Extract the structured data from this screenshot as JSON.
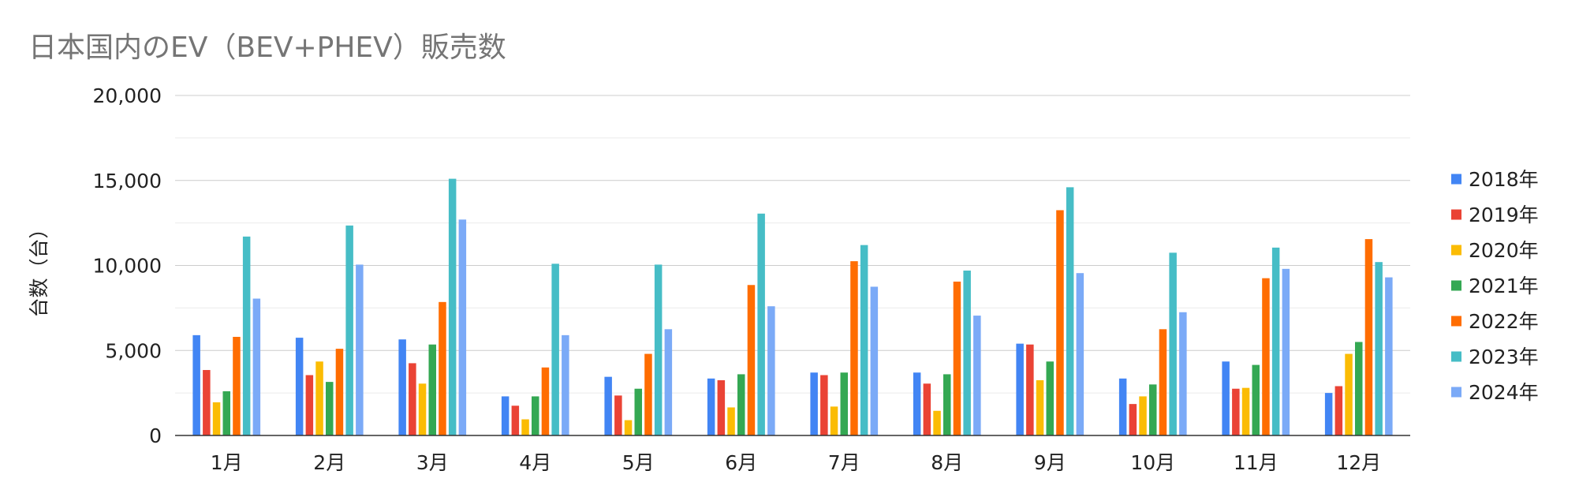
{
  "chart_data": {
    "type": "bar",
    "title": "日本国内のEV（BEV+PHEV）販売数",
    "xlabel": "",
    "ylabel": "台数（台）",
    "ylim": [
      0,
      20000
    ],
    "yticks": [
      0,
      5000,
      10000,
      15000,
      20000
    ],
    "ytick_labels": [
      "0",
      "5,000",
      "10,000",
      "15,000",
      "20,000"
    ],
    "grid": true,
    "legend_position": "right",
    "categories": [
      "1月",
      "2月",
      "3月",
      "4月",
      "5月",
      "6月",
      "7月",
      "8月",
      "9月",
      "10月",
      "11月",
      "12月"
    ],
    "series": [
      {
        "name": "2018年",
        "color": "#4285F4",
        "values": [
          5900,
          5750,
          5650,
          2300,
          3450,
          3350,
          3700,
          3700,
          5400,
          3350,
          4350,
          2500
        ]
      },
      {
        "name": "2019年",
        "color": "#EA4335",
        "values": [
          3850,
          3550,
          4250,
          1750,
          2350,
          3250,
          3550,
          3050,
          5350,
          1850,
          2750,
          2900
        ]
      },
      {
        "name": "2020年",
        "color": "#FBBC04",
        "values": [
          1950,
          4350,
          3050,
          950,
          900,
          1650,
          1700,
          1450,
          3250,
          2300,
          2800,
          4800
        ]
      },
      {
        "name": "2021年",
        "color": "#34A853",
        "values": [
          2600,
          3150,
          5350,
          2300,
          2750,
          3600,
          3700,
          3600,
          4350,
          3000,
          4150,
          5500
        ]
      },
      {
        "name": "2022年",
        "color": "#FF6D01",
        "values": [
          5800,
          5100,
          7850,
          4000,
          4800,
          8850,
          10250,
          9050,
          13250,
          6250,
          9250,
          11550
        ]
      },
      {
        "name": "2023年",
        "color": "#46BDC6",
        "values": [
          11700,
          12350,
          15100,
          10100,
          10050,
          13050,
          11200,
          9700,
          14600,
          10750,
          11050,
          10200
        ]
      },
      {
        "name": "2024年",
        "color": "#7BAAF7",
        "values": [
          8050,
          10050,
          12700,
          5900,
          6250,
          7600,
          8750,
          7050,
          9550,
          7250,
          9800,
          9300
        ]
      }
    ]
  }
}
